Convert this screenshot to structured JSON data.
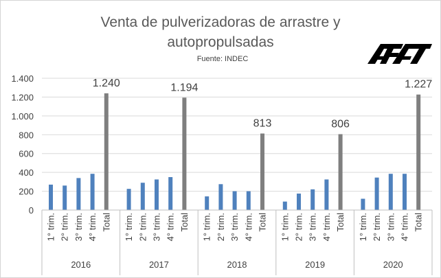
{
  "chart_data": {
    "type": "bar",
    "title_line1": "Venta de pulverizadoras de arrastre y",
    "title_line2": "autopropulsadas",
    "subtitle": "Fuente: INDEC",
    "logo_text": "AFAT",
    "xlabel": "",
    "ylabel": "",
    "ylim": [
      0,
      1400
    ],
    "yticks": [
      0,
      200,
      400,
      600,
      800,
      1000,
      1200,
      1400
    ],
    "ytick_labels": [
      "0",
      "200",
      "400",
      "600",
      "800",
      "1.000",
      "1.200",
      "1.400"
    ],
    "grid": true,
    "legend": "none",
    "categories": [
      "1° trim.",
      "2° trim.",
      "3° trim.",
      "4° trim.",
      "Total"
    ],
    "groups": [
      {
        "year": "2016",
        "values": [
          270,
          260,
          340,
          385,
          1240
        ],
        "total_label": "1.240"
      },
      {
        "year": "2017",
        "values": [
          225,
          290,
          325,
          350,
          1194
        ],
        "total_label": "1.194"
      },
      {
        "year": "2018",
        "values": [
          145,
          275,
          200,
          200,
          813
        ],
        "total_label": "813"
      },
      {
        "year": "2019",
        "values": [
          90,
          175,
          220,
          325,
          806
        ],
        "total_label": "806"
      },
      {
        "year": "2020",
        "values": [
          120,
          345,
          385,
          385,
          1227
        ],
        "total_label": "1.227"
      }
    ],
    "colors": {
      "quarter": "#4f81bd",
      "total": "#7f7f7f",
      "grid": "#d9d9d9",
      "axis": "#bfbfbf"
    }
  }
}
